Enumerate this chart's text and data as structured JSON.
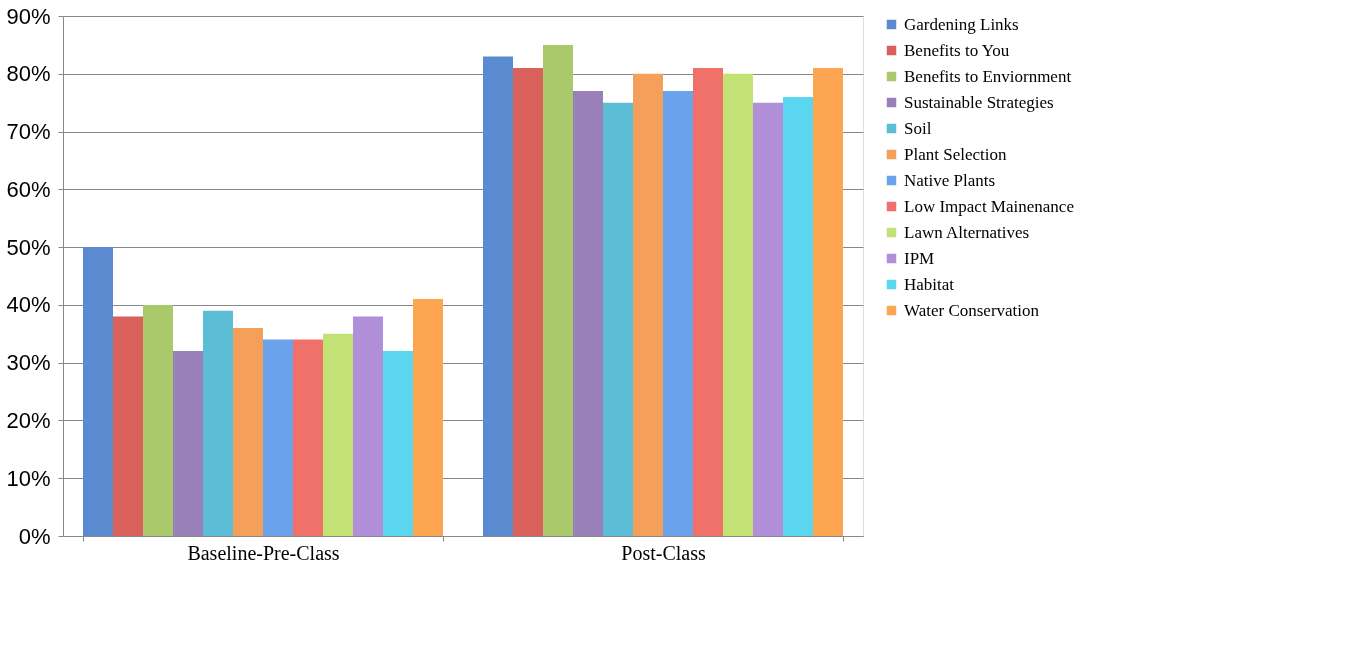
{
  "chart_data": {
    "type": "bar",
    "categories": [
      "Baseline-Pre-Class",
      "Post-Class"
    ],
    "series": [
      {
        "name": "Gardening Links",
        "color": "#5a8ad0",
        "values": [
          50,
          83
        ]
      },
      {
        "name": "Benefits to You",
        "color": "#d9605b",
        "values": [
          38,
          81
        ]
      },
      {
        "name": "Benefits to Enviornment",
        "color": "#a9c96a",
        "values": [
          40,
          85
        ]
      },
      {
        "name": "Sustainable Strategies",
        "color": "#9a80b8",
        "values": [
          32,
          77
        ]
      },
      {
        "name": "Soil",
        "color": "#5cbdd6",
        "values": [
          39,
          75
        ]
      },
      {
        "name": "Plant Selection",
        "color": "#f5a05a",
        "values": [
          36,
          80
        ]
      },
      {
        "name": "Native Plants",
        "color": "#6aa2ec",
        "values": [
          34,
          77
        ]
      },
      {
        "name": "Low Impact Mainenance",
        "color": "#f0706a",
        "values": [
          34,
          81
        ]
      },
      {
        "name": "Lawn Alternatives",
        "color": "#c2e276",
        "values": [
          35,
          80
        ]
      },
      {
        "name": "IPM",
        "color": "#b08ed8",
        "values": [
          38,
          75
        ]
      },
      {
        "name": "Habitat",
        "color": "#5ad6f0",
        "values": [
          32,
          76
        ]
      },
      {
        "name": "Water Conservation",
        "color": "#fda550",
        "values": [
          41,
          81
        ]
      }
    ],
    "ylim": [
      0,
      90
    ],
    "yticks": [
      {
        "value": 0,
        "label": "0%"
      },
      {
        "value": 10,
        "label": "10%"
      },
      {
        "value": 20,
        "label": "20%"
      },
      {
        "value": 30,
        "label": "30%"
      },
      {
        "value": 40,
        "label": "40%"
      },
      {
        "value": 50,
        "label": "50%"
      },
      {
        "value": 60,
        "label": "60%"
      },
      {
        "value": 70,
        "label": "70%"
      },
      {
        "value": 80,
        "label": "80%"
      },
      {
        "value": 90,
        "label": "90%"
      }
    ],
    "grid": "y",
    "legend": "right"
  }
}
